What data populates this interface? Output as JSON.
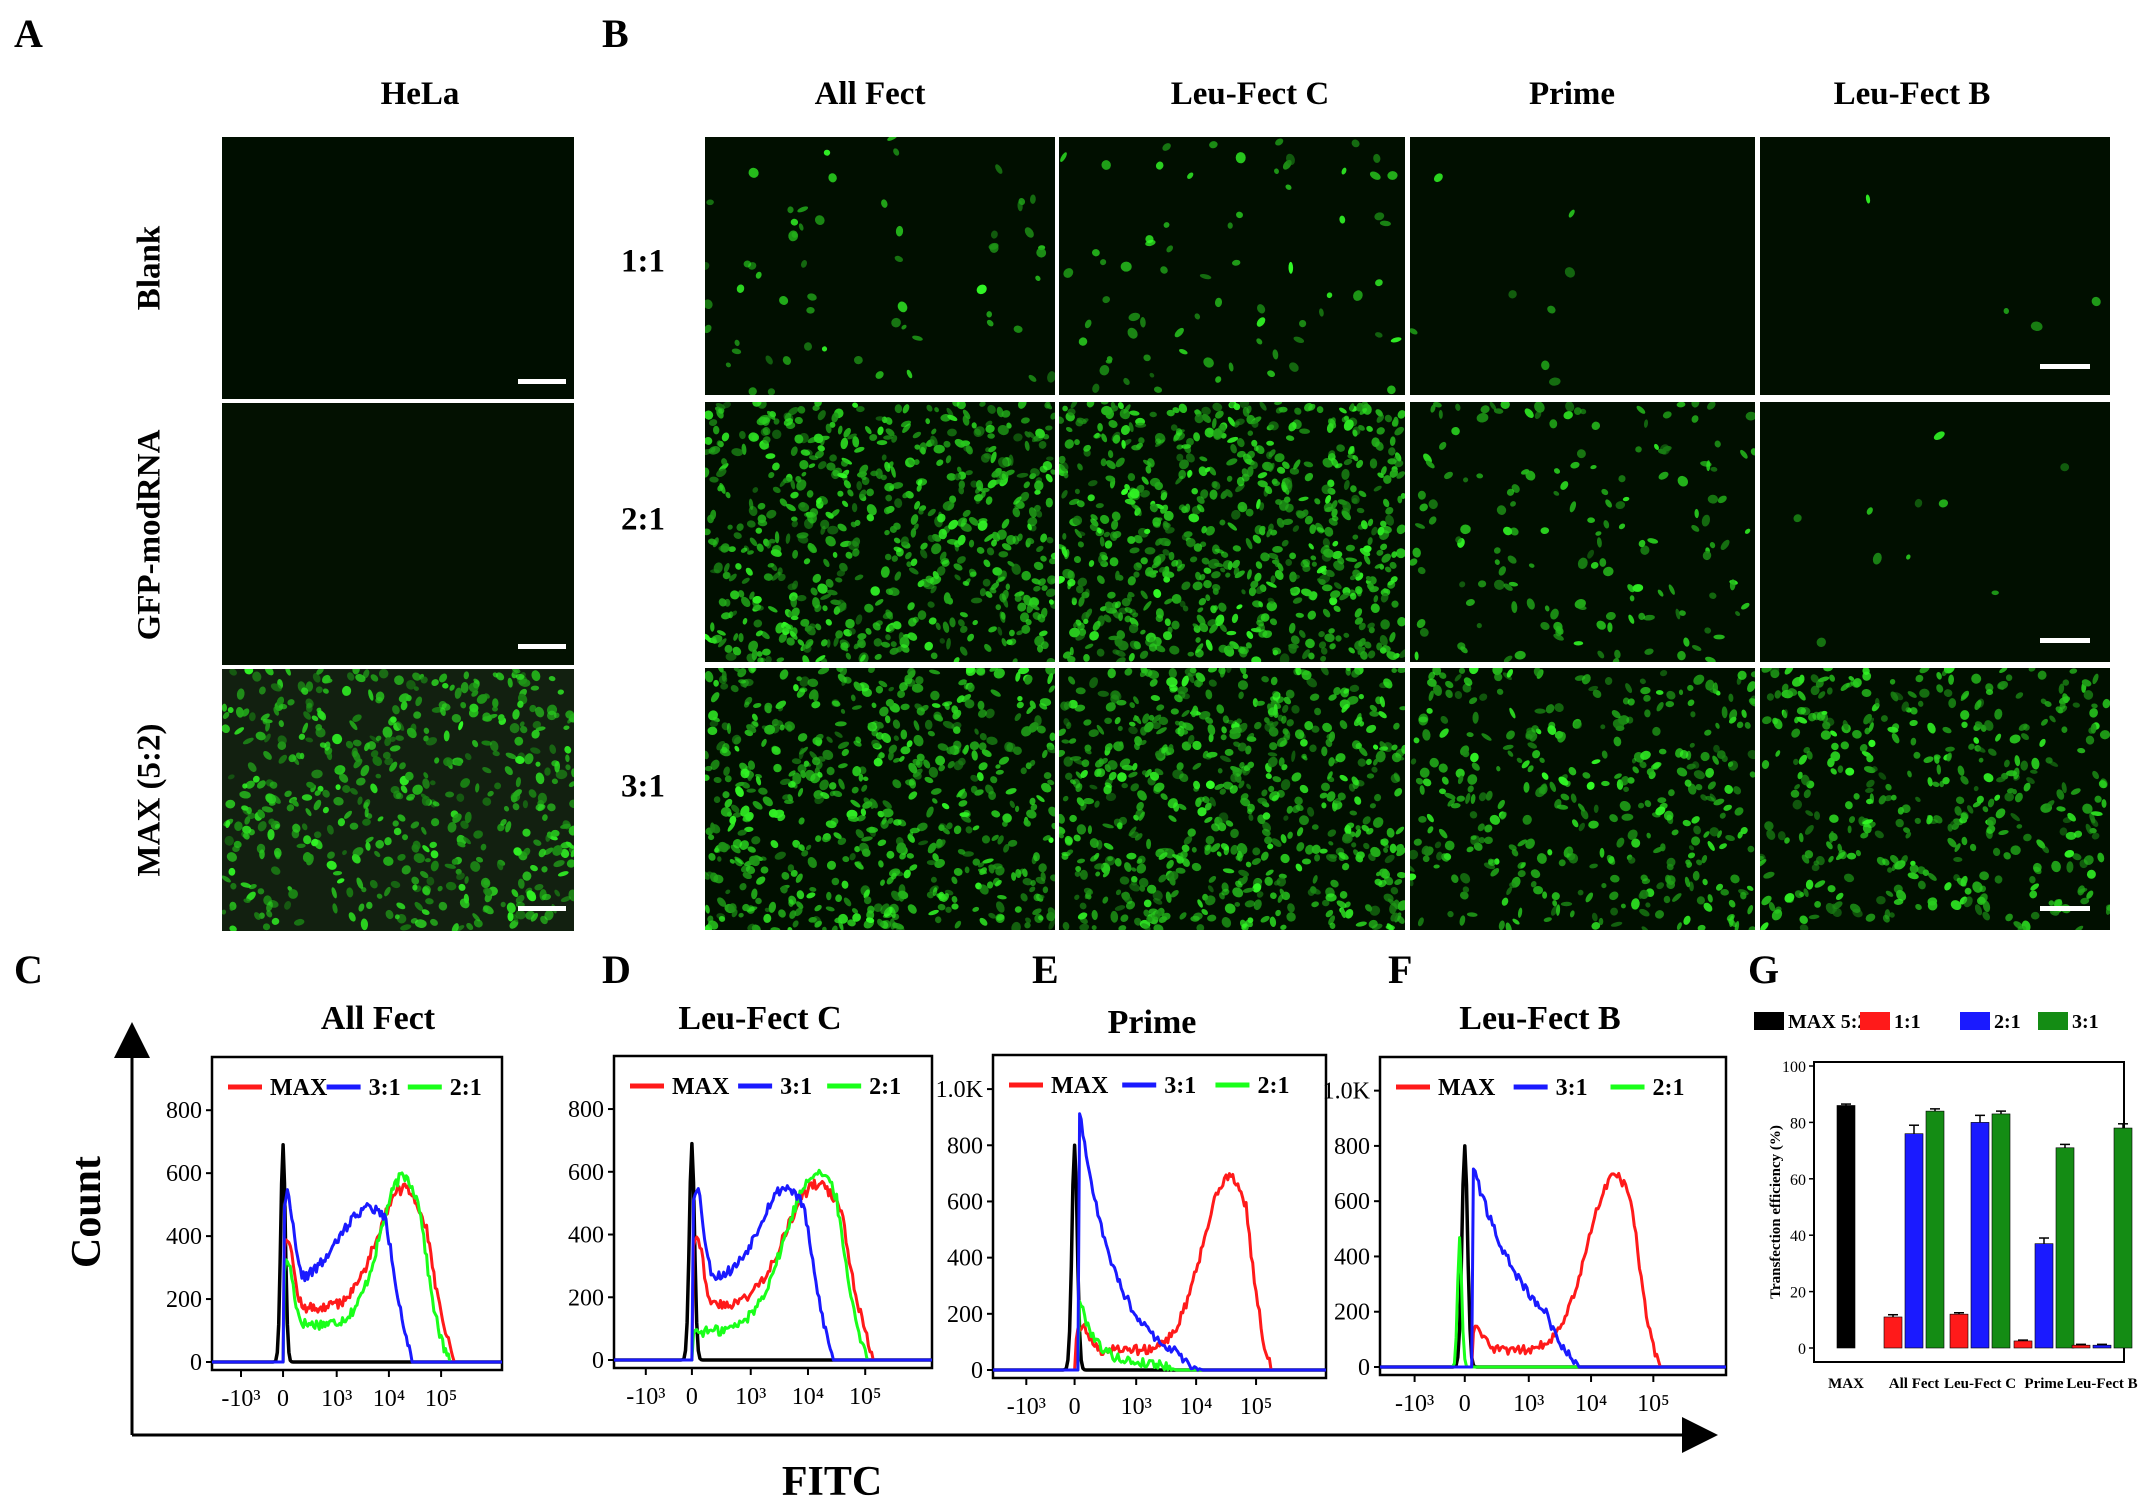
{
  "panel_letters": [
    "A",
    "B",
    "C",
    "D",
    "E",
    "F",
    "G"
  ],
  "panel_a": {
    "column_title": "HeLa",
    "row_labels": [
      "Blank",
      "GFP-modRNA",
      "MAX (5:2)"
    ],
    "images": [
      {
        "density": 0,
        "brightness": 0
      },
      {
        "density": 0,
        "brightness": 0.15
      },
      {
        "density": 520,
        "brightness": 0.8
      }
    ]
  },
  "panel_b": {
    "column_titles": [
      "All Fect",
      "Leu-Fect C",
      "Prime",
      "Leu-Fect B"
    ],
    "row_labels": [
      "1:1",
      "2:1",
      "3:1"
    ],
    "densities": [
      [
        60,
        70,
        8,
        4
      ],
      [
        650,
        700,
        160,
        10
      ],
      [
        620,
        650,
        380,
        420
      ]
    ]
  },
  "histograms": {
    "axis_label_y": "Count",
    "axis_label_x": "FITC",
    "legend": [
      "MAX",
      "3:1",
      "2:1"
    ],
    "colors": {
      "MAX": "#ff1a1a",
      "3:1": "#1a1aff",
      "2:1": "#1aff1a",
      "blank": "#000000"
    },
    "x_tick_labels": [
      "-10³",
      "0",
      "10³",
      "10⁴",
      "10⁵"
    ],
    "panels": [
      {
        "letter": "C",
        "title": "All Fect",
        "y_ticks": [
          "0",
          "200",
          "400",
          "600",
          "800"
        ],
        "ymax": 950
      },
      {
        "letter": "D",
        "title": "Leu-Fect C",
        "y_ticks": [
          "0",
          "200",
          "400",
          "600",
          "800"
        ],
        "ymax": 950
      },
      {
        "letter": "E",
        "title": "Prime",
        "y_ticks": [
          "0",
          "200",
          "400",
          "600",
          "800",
          "1.0K"
        ],
        "ymax": 1100
      },
      {
        "letter": "F",
        "title": "Leu-Fect B",
        "y_ticks": [
          "0",
          "200",
          "400",
          "600",
          "800",
          "1.0K"
        ],
        "ymax": 1100
      }
    ]
  },
  "chart_data": {
    "type": "bar",
    "title": "",
    "xlabel": "",
    "ylabel": "Transfection efficiency (%)",
    "ylim": [
      0,
      100
    ],
    "y_ticks": [
      0,
      20,
      40,
      60,
      80,
      100
    ],
    "categories": [
      "MAX",
      "All Fect",
      "Leu-Fect C",
      "Prime",
      "Leu-Fect B"
    ],
    "legend_placement": "top",
    "series": [
      {
        "name": "MAX 5:2",
        "color": "#000000",
        "values": [
          86,
          null,
          null,
          null,
          null
        ],
        "errors": [
          0.5,
          null,
          null,
          null,
          null
        ]
      },
      {
        "name": "1:1",
        "color": "#ff1a1a",
        "values": [
          null,
          11,
          12,
          2.5,
          1
        ],
        "errors": [
          null,
          0.8,
          0.5,
          0.3,
          0.3
        ]
      },
      {
        "name": "2:1",
        "color": "#1a1aff",
        "values": [
          null,
          76,
          80,
          37,
          1
        ],
        "errors": [
          null,
          3,
          2.5,
          2,
          0.3
        ]
      },
      {
        "name": "3:1",
        "color": "#148c14",
        "values": [
          null,
          84,
          83,
          71,
          78
        ],
        "errors": [
          null,
          0.8,
          1,
          1.2,
          1.5
        ]
      }
    ]
  }
}
